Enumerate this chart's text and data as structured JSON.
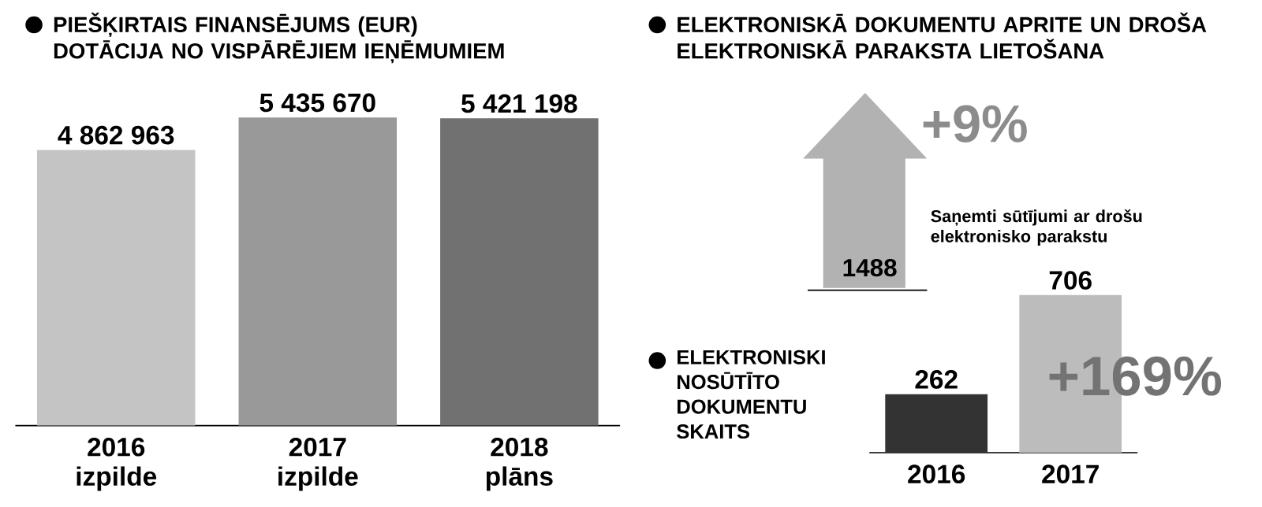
{
  "chart_data": [
    {
      "type": "bar",
      "title": "PIEŠĶIRTAIS FINANSĒJUMS (EUR)",
      "subtitle": "DOTĀCIJA NO VISPĀRĒJIEM IEŅĒMUMIEM",
      "categories": [
        "2016 izpilde",
        "2017 izpilde",
        "2018 plāns"
      ],
      "values": [
        4862963,
        5435670,
        5421198
      ],
      "value_labels": [
        "4 862 963",
        "5 435 670",
        "5 421 198"
      ],
      "colors": [
        "#c4c4c4",
        "#999999",
        "#717171"
      ]
    },
    {
      "type": "other",
      "title": "ELEKTRONISKĀ DOKUMENTU APRITE UN DROŠA ELEKTRONISKĀ PARAKSTA LIETOŠANA",
      "annotations": [
        "+9%",
        "1488",
        "Saņemti sūtījumi ar drošu elektronisko parakstu"
      ]
    },
    {
      "type": "bar",
      "title": "ELEKTRONISKI NOSŪTĪTO DOKUMENTU SKAITS",
      "categories": [
        "2016",
        "2017"
      ],
      "values": [
        262,
        706
      ],
      "data_labels": true,
      "colors": [
        "#333333",
        "#bcbcbc"
      ],
      "annotations": [
        "+169%"
      ]
    }
  ]
}
